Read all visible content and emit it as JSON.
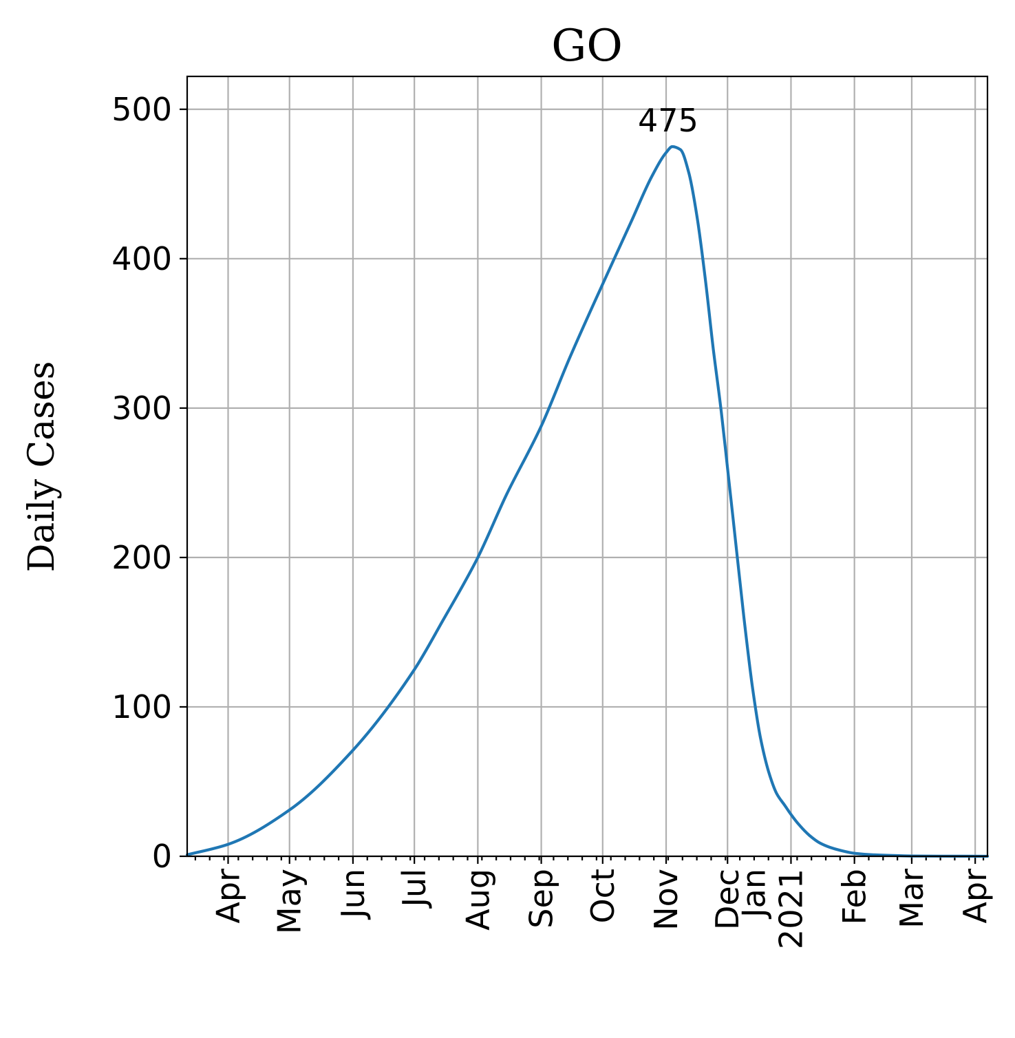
{
  "chart_data": {
    "type": "line",
    "title": "GO",
    "xlabel": "",
    "ylabel": "Daily Cases",
    "ylim": [
      0,
      522
    ],
    "xlim": [
      "2020-03-12",
      "2021-04-07"
    ],
    "yticks": [
      0,
      100,
      200,
      300,
      400,
      500
    ],
    "xticks": [
      {
        "date": "2020-04-01",
        "label": "Apr"
      },
      {
        "date": "2020-05-01",
        "label": "May"
      },
      {
        "date": "2020-06-01",
        "label": "Jun"
      },
      {
        "date": "2020-07-01",
        "label": "Jul"
      },
      {
        "date": "2020-08-01",
        "label": "Aug"
      },
      {
        "date": "2020-09-01",
        "label": "Sep"
      },
      {
        "date": "2020-10-01",
        "label": "Oct"
      },
      {
        "date": "2020-11-01",
        "label": "Nov"
      },
      {
        "date": "2020-12-01",
        "label": "Dec"
      },
      {
        "date": "2021-01-01",
        "label": "Jan\n2021"
      },
      {
        "date": "2021-02-01",
        "label": "Feb"
      },
      {
        "date": "2021-03-01",
        "label": "Mar"
      },
      {
        "date": "2021-04-01",
        "label": "Apr"
      }
    ],
    "grid": true,
    "color": "#1f77b4",
    "series": [
      {
        "x": [
          "2020-03-12",
          "2020-04-01",
          "2020-05-01",
          "2020-06-01",
          "2020-07-01",
          "2020-07-15",
          "2020-08-01",
          "2020-08-15",
          "2020-09-01",
          "2020-09-15",
          "2020-10-01",
          "2020-10-15",
          "2020-10-25",
          "2020-11-01",
          "2020-11-04",
          "2020-11-08",
          "2020-11-12",
          "2020-11-16",
          "2020-11-20",
          "2020-11-24",
          "2020-11-28",
          "2020-12-01",
          "2020-12-05",
          "2020-12-09",
          "2020-12-13",
          "2020-12-17",
          "2020-12-21",
          "2020-12-25",
          "2020-12-29",
          "2021-01-01",
          "2021-01-05",
          "2021-01-10",
          "2021-01-15",
          "2021-01-20",
          "2021-01-25",
          "2021-02-01",
          "2021-02-10",
          "2021-02-20",
          "2021-03-01",
          "2021-03-15",
          "2021-04-07"
        ],
        "values": [
          1,
          8,
          31,
          71,
          125,
          158,
          200,
          242,
          288,
          334,
          383,
          425,
          455,
          471,
          475,
          473,
          458,
          429,
          388,
          340,
          297,
          260,
          210,
          160,
          115,
          80,
          57,
          42,
          34,
          28,
          21,
          14,
          9,
          6,
          4,
          2,
          1,
          0.5,
          0.2,
          0.1,
          0
        ]
      }
    ],
    "annotations": [
      {
        "text": "475",
        "x": "2020-11-04",
        "y": 475
      }
    ]
  }
}
